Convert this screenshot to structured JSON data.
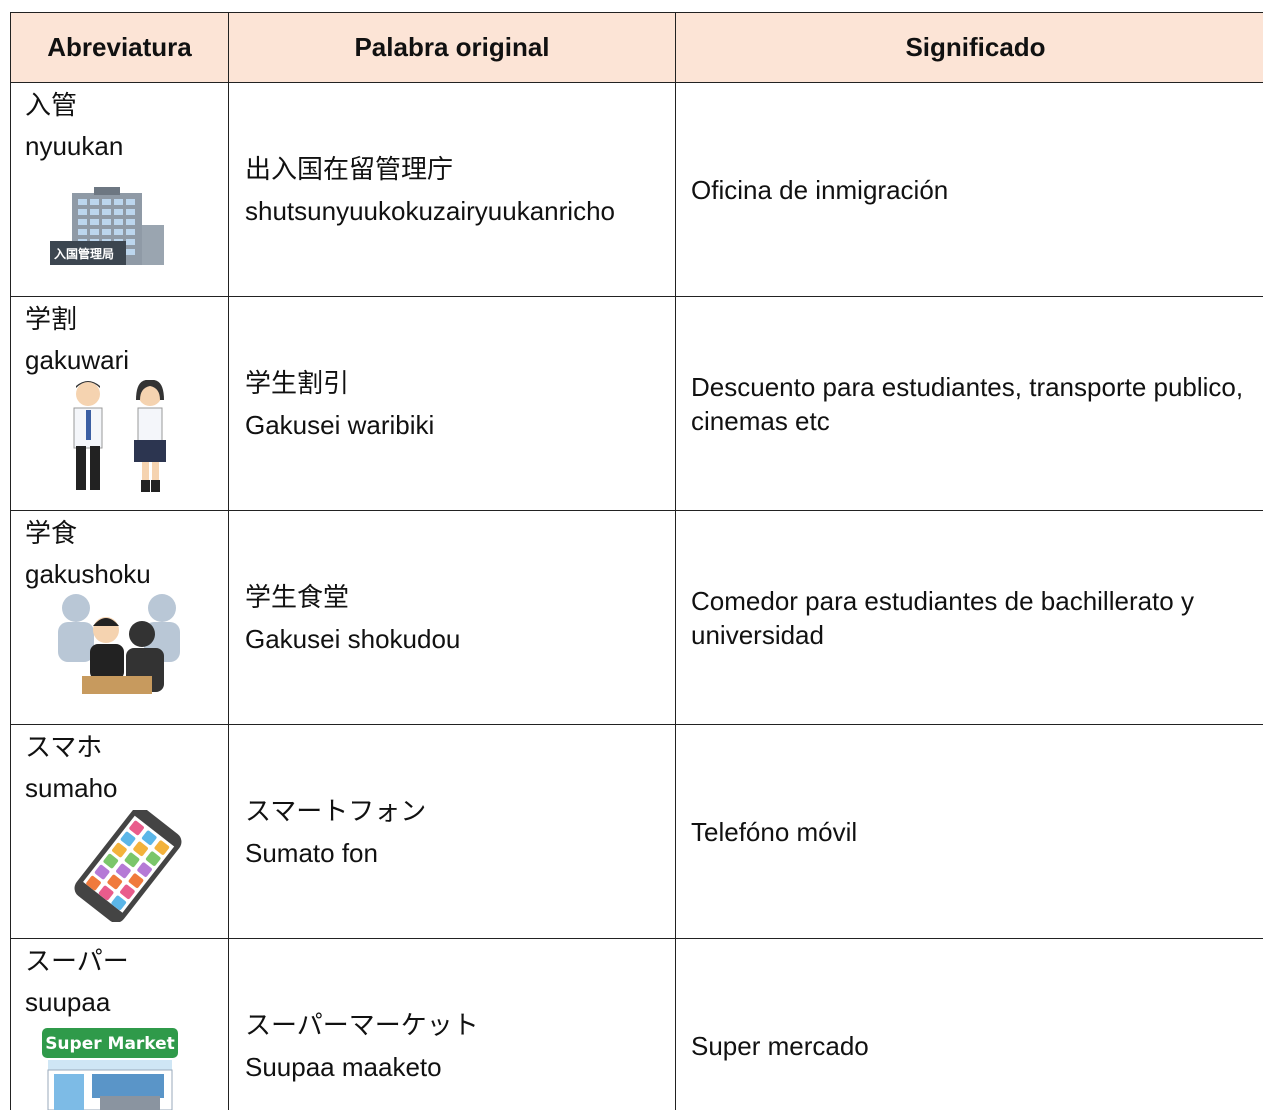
{
  "table": {
    "headers": [
      "Abreviatura",
      "Palabra original",
      "Significado"
    ],
    "rows": [
      {
        "abbreviation": "入管",
        "reading": "nyuukan",
        "icon_label": "入国管理局",
        "original": "出入国在留管理庁",
        "original_reading": "shutsunyuukokuzairyuukanricho",
        "meaning": "Oficina de inmigración"
      },
      {
        "abbreviation": "学割",
        "reading": "gakuwari",
        "original": "学生割引",
        "original_reading": "Gakusei waribiki",
        "meaning": "Descuento para estudiantes, transporte publico, cinemas etc"
      },
      {
        "abbreviation": "学食",
        "reading": "gakushoku",
        "original": "学生食堂",
        "original_reading": "Gakusei shokudou",
        "meaning": "Comedor para estudiantes de bachillerato y universidad"
      },
      {
        "abbreviation": "スマホ",
        "reading": "sumaho",
        "original": "スマートフォン",
        "original_reading": "Sumato fon",
        "meaning": "Telefóno móvil"
      },
      {
        "abbreviation": "スーパー",
        "reading": "suupaa",
        "icon_label": "Super Market",
        "original": "スーパーマーケット",
        "original_reading": "Suupaa maaketo",
        "meaning": "Super mercado"
      }
    ]
  }
}
